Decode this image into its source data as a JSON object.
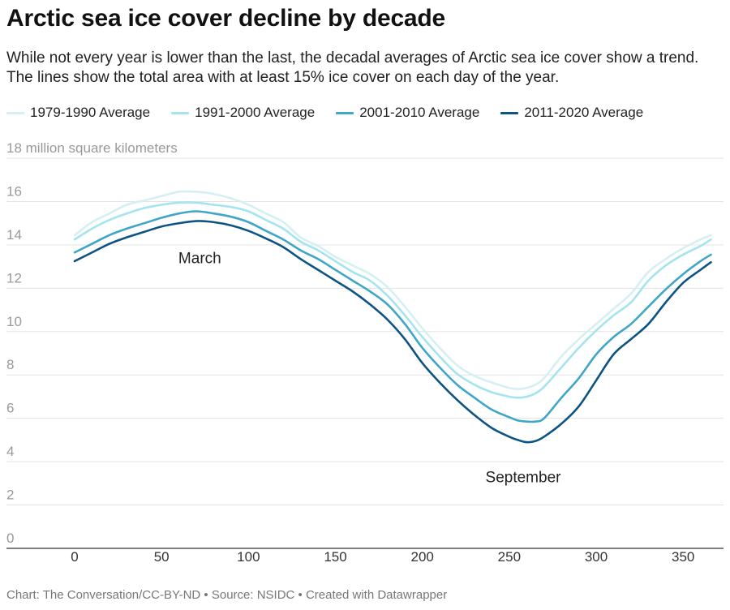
{
  "title": "Arctic sea ice cover decline by decade",
  "subtitle": "While not every year is lower than the last, the decadal averages of Arctic sea ice cover show a trend. The lines show the total area with at least 15% ice cover on each day of the year.",
  "footer": "Chart: The Conversation/CC-BY-ND • Source: NSIDC • Created with Datawrapper",
  "chart_data": {
    "type": "line",
    "ylabel": "18 million square kilometers",
    "ylim": [
      0,
      18
    ],
    "xlim": [
      0,
      366
    ],
    "y_ticks": [
      0,
      2,
      4,
      6,
      8,
      10,
      12,
      14,
      16
    ],
    "x_ticks": [
      0,
      50,
      100,
      150,
      200,
      250,
      300,
      350
    ],
    "grid": true,
    "legend_position": "top-left",
    "annotations": [
      {
        "text": "March",
        "x": 72,
        "y": 12.7
      },
      {
        "text": "September",
        "x": 258,
        "y": 2.6
      }
    ],
    "series": [
      {
        "name": "1979-1990 Average",
        "color": "#d5eff3",
        "x": [
          0,
          10,
          20,
          30,
          40,
          50,
          60,
          70,
          80,
          90,
          100,
          110,
          120,
          130,
          140,
          150,
          160,
          170,
          180,
          190,
          200,
          210,
          220,
          230,
          240,
          250,
          255,
          260,
          265,
          270,
          280,
          290,
          300,
          310,
          320,
          330,
          340,
          350,
          360,
          366
        ],
        "values": [
          14.0,
          14.6,
          15.0,
          15.4,
          15.6,
          15.8,
          16.0,
          16.0,
          15.9,
          15.7,
          15.4,
          15.0,
          14.6,
          13.9,
          13.5,
          13.0,
          12.6,
          12.2,
          11.6,
          10.7,
          9.7,
          8.8,
          8.0,
          7.5,
          7.2,
          6.95,
          6.9,
          6.95,
          7.1,
          7.4,
          8.4,
          9.2,
          9.9,
          10.6,
          11.3,
          12.3,
          12.9,
          13.4,
          13.8,
          14.0
        ]
      },
      {
        "name": "1991-2000 Average",
        "color": "#a4e4ef",
        "x": [
          0,
          10,
          20,
          30,
          40,
          50,
          60,
          70,
          80,
          90,
          100,
          110,
          120,
          130,
          140,
          150,
          160,
          170,
          180,
          190,
          200,
          210,
          220,
          230,
          240,
          250,
          255,
          260,
          265,
          270,
          280,
          290,
          300,
          310,
          320,
          330,
          340,
          350,
          360,
          366
        ],
        "values": [
          13.8,
          14.3,
          14.7,
          15.0,
          15.25,
          15.4,
          15.5,
          15.5,
          15.4,
          15.3,
          15.1,
          14.7,
          14.3,
          13.7,
          13.3,
          12.8,
          12.3,
          11.9,
          11.2,
          10.3,
          9.3,
          8.4,
          7.6,
          7.1,
          6.75,
          6.55,
          6.5,
          6.55,
          6.7,
          7.0,
          7.9,
          8.8,
          9.6,
          10.3,
          10.9,
          11.9,
          12.6,
          13.1,
          13.5,
          13.8
        ]
      },
      {
        "name": "2001-2010 Average",
        "color": "#3fa6c8",
        "x": [
          0,
          10,
          20,
          30,
          40,
          50,
          60,
          70,
          80,
          90,
          100,
          110,
          120,
          130,
          140,
          150,
          160,
          170,
          180,
          190,
          200,
          210,
          220,
          230,
          240,
          250,
          255,
          260,
          265,
          270,
          280,
          290,
          300,
          310,
          320,
          330,
          340,
          350,
          360,
          366
        ],
        "values": [
          13.2,
          13.6,
          14.0,
          14.3,
          14.55,
          14.8,
          15.0,
          15.1,
          15.0,
          14.85,
          14.6,
          14.2,
          13.8,
          13.3,
          12.9,
          12.4,
          11.9,
          11.4,
          10.8,
          9.9,
          8.8,
          7.9,
          7.1,
          6.5,
          5.95,
          5.6,
          5.45,
          5.4,
          5.4,
          5.55,
          6.5,
          7.4,
          8.5,
          9.3,
          9.9,
          10.7,
          11.5,
          12.2,
          12.8,
          13.1
        ]
      },
      {
        "name": "2011-2020 Average",
        "color": "#0d5384",
        "x": [
          0,
          10,
          20,
          30,
          40,
          50,
          60,
          70,
          80,
          90,
          100,
          110,
          120,
          130,
          140,
          150,
          160,
          170,
          180,
          190,
          200,
          210,
          220,
          230,
          240,
          250,
          255,
          260,
          265,
          270,
          280,
          290,
          300,
          310,
          320,
          330,
          340,
          350,
          360,
          366
        ],
        "values": [
          12.8,
          13.2,
          13.6,
          13.9,
          14.15,
          14.4,
          14.55,
          14.65,
          14.6,
          14.45,
          14.2,
          13.85,
          13.45,
          12.9,
          12.4,
          11.9,
          11.4,
          10.8,
          10.1,
          9.2,
          8.1,
          7.2,
          6.4,
          5.7,
          5.1,
          4.7,
          4.55,
          4.45,
          4.5,
          4.7,
          5.3,
          6.1,
          7.3,
          8.5,
          9.2,
          9.9,
          10.9,
          11.8,
          12.4,
          12.75
        ]
      }
    ]
  }
}
